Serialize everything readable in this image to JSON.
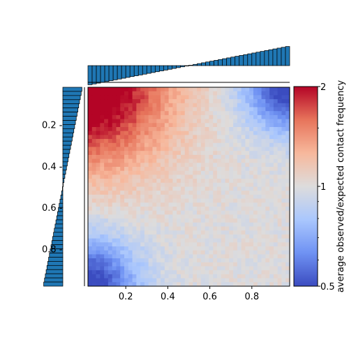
{
  "chart_data": {
    "type": "heatmap",
    "title": "",
    "xlabel": "",
    "ylabel": "",
    "grid_size": 50,
    "x_range": [
      0.02,
      0.98
    ],
    "y_range": [
      0.02,
      0.98
    ],
    "x_ticks": [
      0.2,
      0.4,
      0.6,
      0.8
    ],
    "x_tick_labels": [
      "0.2",
      "0.4",
      "0.6",
      "0.8"
    ],
    "y_ticks": [
      0.2,
      0.4,
      0.6,
      0.8
    ],
    "y_tick_labels": [
      "0.2 -",
      "0.4 -",
      "0.6 -",
      "0.8 -"
    ],
    "colormap": "coolwarm",
    "colorbar": {
      "label": "average observed/expected contact frequency",
      "scale": "log",
      "range": [
        0.5,
        2
      ],
      "ticks": [
        0.5,
        1,
        2
      ],
      "tick_labels": [
        "0.5",
        "1",
        "2"
      ],
      "colors": [
        "#3b4cc0",
        "#6f92f3",
        "#aac7fd",
        "#dddcdc",
        "#f7b89c",
        "#e7745b",
        "#b40426"
      ]
    },
    "heatmap_description": "values: ~2 (red) upper-left corner region, ~0.5 (blue) upper-right and lower-left corners, ~1 elsewhere",
    "marginal_top": {
      "orientation": "vertical bars",
      "color": "#1f77b4",
      "edgecolor": "#000000",
      "trend": "negative near x=0 rising linearly to positive near x=1",
      "range": [
        -1,
        1
      ]
    },
    "marginal_left": {
      "orientation": "horizontal bars",
      "color": "#1f77b4",
      "edgecolor": "#000000",
      "trend": "positive near y=0 decreasing linearly to negative near y=1",
      "range": [
        -1,
        1
      ]
    }
  }
}
